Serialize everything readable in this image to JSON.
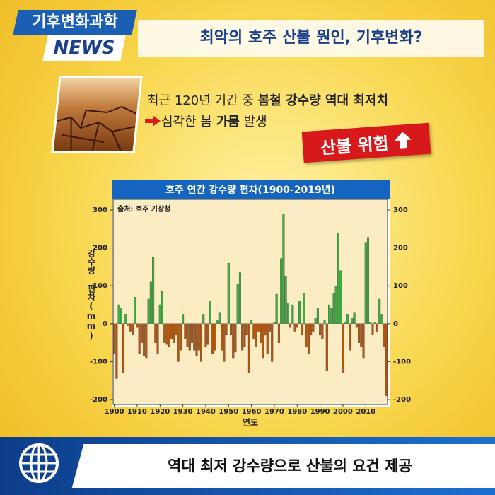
{
  "header": {
    "badge": "기후변화과학",
    "news": "NEWS",
    "headline": "최악의 호주 산불 원인, 기후변화?"
  },
  "summary": {
    "line1": [
      {
        "text": "최근 120년 기간 중 ",
        "bold": false
      },
      {
        "text": "봄철 강수량 역대 최저치",
        "bold": true
      }
    ],
    "line2": [
      {
        "text": "심각한 봄 ",
        "bold": false
      },
      {
        "text": "가뭄",
        "bold": true
      },
      {
        "text": " 발생",
        "bold": false
      }
    ],
    "alert": "산불 위험"
  },
  "chart_data": {
    "type": "bar",
    "title": "호주 연간 강수량 편차(1900-2019년)",
    "source": "출처: 호주 기상청",
    "x_label": "연도",
    "y_label": "강수량 편차(mm)",
    "x": [
      1900,
      1901,
      1902,
      1903,
      1904,
      1905,
      1906,
      1907,
      1908,
      1909,
      1910,
      1911,
      1912,
      1913,
      1914,
      1915,
      1916,
      1917,
      1918,
      1919,
      1920,
      1921,
      1922,
      1923,
      1924,
      1925,
      1926,
      1927,
      1928,
      1929,
      1930,
      1931,
      1932,
      1933,
      1934,
      1935,
      1936,
      1937,
      1938,
      1939,
      1940,
      1941,
      1942,
      1943,
      1944,
      1945,
      1946,
      1947,
      1948,
      1949,
      1950,
      1951,
      1952,
      1953,
      1954,
      1955,
      1956,
      1957,
      1958,
      1959,
      1960,
      1961,
      1962,
      1963,
      1964,
      1965,
      1966,
      1967,
      1968,
      1969,
      1970,
      1971,
      1972,
      1973,
      1974,
      1975,
      1976,
      1977,
      1978,
      1979,
      1980,
      1981,
      1982,
      1983,
      1984,
      1985,
      1986,
      1987,
      1988,
      1989,
      1990,
      1991,
      1992,
      1993,
      1994,
      1995,
      1996,
      1997,
      1998,
      1999,
      2000,
      2001,
      2002,
      2003,
      2004,
      2005,
      2006,
      2007,
      2008,
      2009,
      2010,
      2011,
      2012,
      2013,
      2014,
      2015,
      2016,
      2017,
      2018,
      2019
    ],
    "values": [
      -80,
      -145,
      50,
      40,
      -130,
      25,
      -5,
      -20,
      -30,
      70,
      -10,
      -80,
      -50,
      -85,
      -90,
      65,
      110,
      175,
      -50,
      -80,
      50,
      85,
      -50,
      -55,
      -60,
      -40,
      -50,
      -30,
      -100,
      -70,
      25,
      -40,
      -60,
      -70,
      -50,
      -70,
      -85,
      -70,
      -100,
      25,
      -60,
      -55,
      60,
      -80,
      -70,
      10,
      30,
      -70,
      -100,
      -30,
      160,
      -30,
      -90,
      -75,
      105,
      135,
      -70,
      -60,
      -30,
      -130,
      10,
      -40,
      -60,
      -20,
      -50,
      -90,
      -30,
      -80,
      -20,
      -100,
      5,
      78,
      -50,
      172,
      290,
      125,
      55,
      -10,
      50,
      -20,
      -10,
      60,
      -30,
      80,
      -60,
      -80,
      -30,
      -20,
      15,
      40,
      -30,
      -40,
      10,
      -125,
      50,
      40,
      80,
      100,
      240,
      140,
      -130,
      5,
      25,
      -70,
      15,
      30,
      -10,
      -50,
      -60,
      -90,
      215,
      228,
      5,
      -30,
      5,
      -20,
      65,
      25,
      -60,
      -190
    ],
    "positive_color": "#3cb043",
    "negative_color": "#b5570e",
    "xlim": [
      1899.5,
      2019.5
    ],
    "xticks": [
      1900,
      1910,
      1920,
      1930,
      1940,
      1950,
      1960,
      1970,
      1980,
      1990,
      2000,
      2010
    ],
    "ylim": [
      -213,
      328
    ],
    "yticks": [
      -200,
      -100,
      0,
      100,
      200,
      300
    ]
  },
  "footer": {
    "caption": "역대 최저 강수량으로 산불의 요건 제공"
  }
}
